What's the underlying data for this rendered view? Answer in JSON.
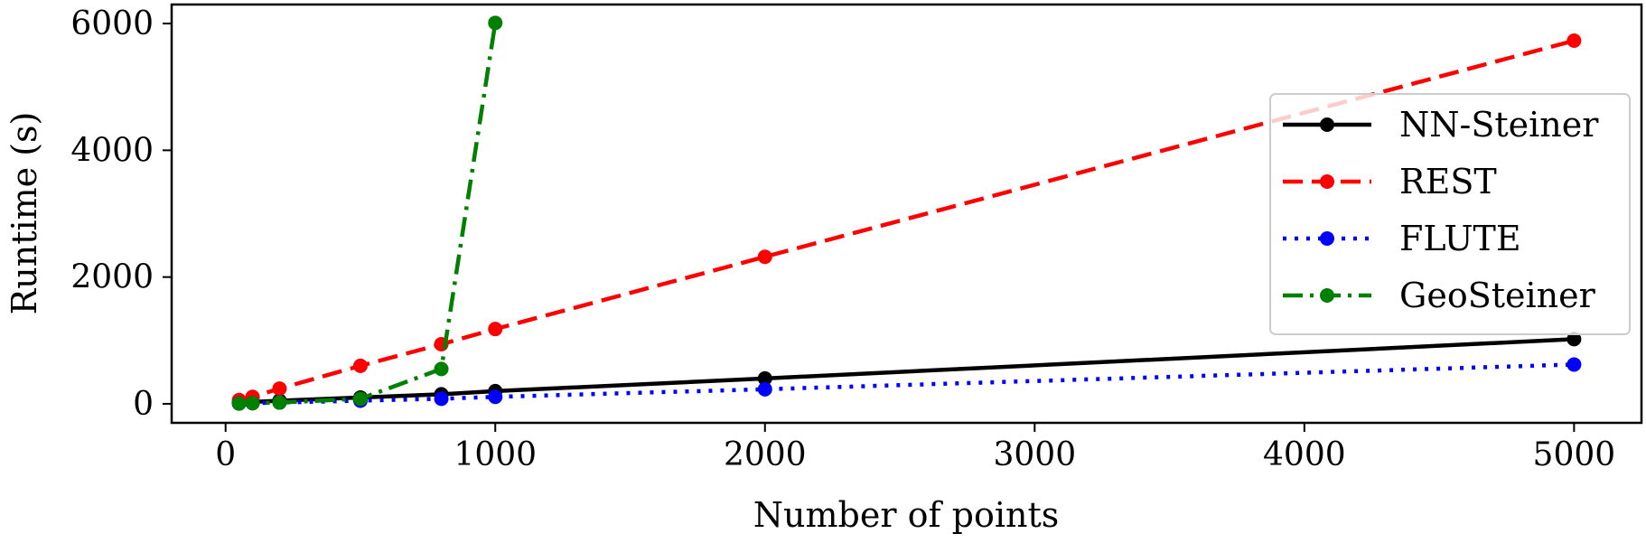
{
  "chart_data": {
    "type": "line",
    "xlabel": "Number of points",
    "ylabel": "Runtime (s)",
    "xlim": [
      -200,
      5250
    ],
    "ylim": [
      -300,
      6300
    ],
    "xticks": [
      0,
      1000,
      2000,
      3000,
      4000,
      5000
    ],
    "yticks": [
      0,
      2000,
      4000,
      6000
    ],
    "xtick_labels": [
      "0",
      "1000",
      "2000",
      "3000",
      "4000",
      "5000"
    ],
    "ytick_labels": [
      "0",
      "2000",
      "4000",
      "6000"
    ],
    "grid": false,
    "legend_position": "right",
    "series": [
      {
        "name": "NN-Steiner",
        "color": "#000000",
        "style": "solid",
        "x": [
          50,
          100,
          200,
          500,
          800,
          1000,
          2000,
          5000
        ],
        "y": [
          20,
          30,
          50,
          100,
          150,
          200,
          400,
          1020
        ]
      },
      {
        "name": "REST",
        "color": "#ff0000",
        "style": "dashed",
        "x": [
          50,
          100,
          200,
          500,
          800,
          1000,
          2000,
          5000
        ],
        "y": [
          60,
          110,
          240,
          600,
          940,
          1180,
          2320,
          5730
        ]
      },
      {
        "name": "FLUTE",
        "color": "#0000ff",
        "style": "dotted",
        "x": [
          50,
          100,
          200,
          500,
          800,
          1000,
          2000,
          5000
        ],
        "y": [
          5,
          10,
          20,
          50,
          80,
          110,
          230,
          620
        ]
      },
      {
        "name": "GeoSteiner",
        "color": "#008000",
        "style": "dashdot",
        "x": [
          50,
          100,
          200,
          500,
          800,
          1000
        ],
        "y": [
          5,
          10,
          20,
          80,
          550,
          6010
        ]
      }
    ]
  }
}
